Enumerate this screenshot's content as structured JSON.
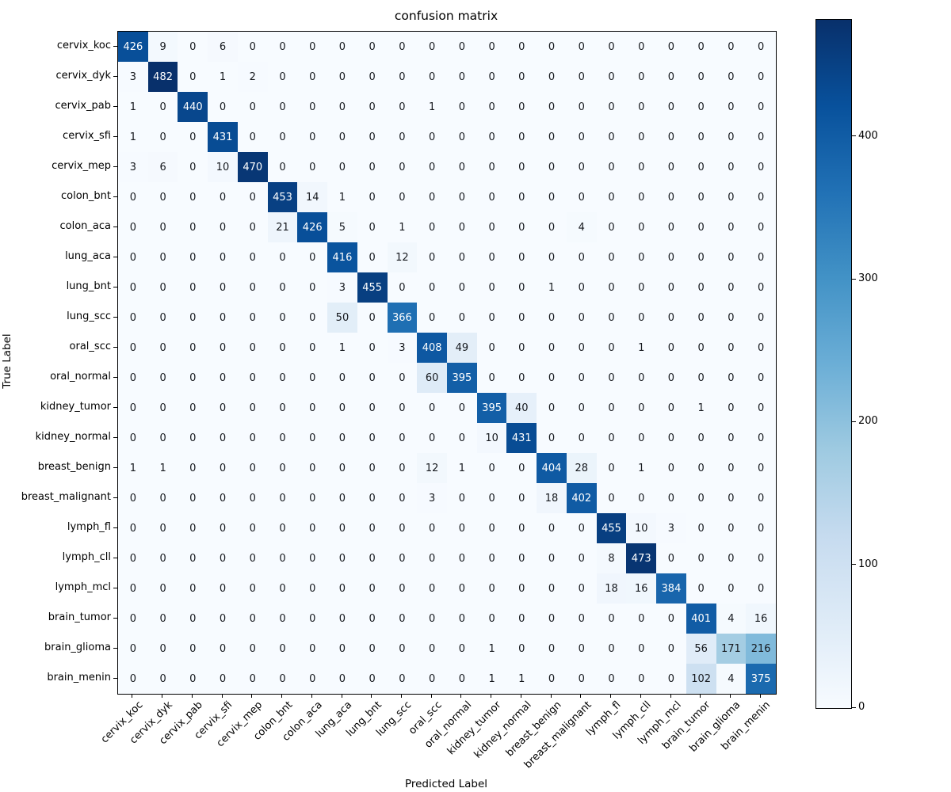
{
  "chart_data": {
    "type": "heatmap",
    "title": "confusion matrix",
    "xlabel": "Predicted Label",
    "ylabel": "True Label",
    "colormap": "Blues",
    "colormap_stops": [
      "#f7fbff",
      "#deebf7",
      "#c6dbef",
      "#9ecae1",
      "#6baed6",
      "#4292c6",
      "#2171b5",
      "#08519c",
      "#08306b"
    ],
    "vmin": 0,
    "vmax": 482,
    "grid": false,
    "legend_position": "right-colorbar",
    "colorbar_ticks": [
      0,
      100,
      200,
      300,
      400
    ],
    "cell_text_colors": {
      "on_dark_cell": "#ffffff",
      "on_light_cell": "#15181d"
    },
    "labels": [
      "cervix_koc",
      "cervix_dyk",
      "cervix_pab",
      "cervix_sfi",
      "cervix_mep",
      "colon_bnt",
      "colon_aca",
      "lung_aca",
      "lung_bnt",
      "lung_scc",
      "oral_scc",
      "oral_normal",
      "kidney_tumor",
      "kidney_normal",
      "breast_benign",
      "breast_malignant",
      "lymph_fl",
      "lymph_cll",
      "lymph_mcl",
      "brain_tumor",
      "brain_glioma",
      "brain_menin"
    ],
    "matrix": [
      [
        426,
        9,
        0,
        6,
        0,
        0,
        0,
        0,
        0,
        0,
        0,
        0,
        0,
        0,
        0,
        0,
        0,
        0,
        0,
        0,
        0,
        0
      ],
      [
        3,
        482,
        0,
        1,
        2,
        0,
        0,
        0,
        0,
        0,
        0,
        0,
        0,
        0,
        0,
        0,
        0,
        0,
        0,
        0,
        0,
        0
      ],
      [
        1,
        0,
        440,
        0,
        0,
        0,
        0,
        0,
        0,
        0,
        1,
        0,
        0,
        0,
        0,
        0,
        0,
        0,
        0,
        0,
        0,
        0
      ],
      [
        1,
        0,
        0,
        431,
        0,
        0,
        0,
        0,
        0,
        0,
        0,
        0,
        0,
        0,
        0,
        0,
        0,
        0,
        0,
        0,
        0,
        0
      ],
      [
        3,
        6,
        0,
        10,
        470,
        0,
        0,
        0,
        0,
        0,
        0,
        0,
        0,
        0,
        0,
        0,
        0,
        0,
        0,
        0,
        0,
        0
      ],
      [
        0,
        0,
        0,
        0,
        0,
        453,
        14,
        1,
        0,
        0,
        0,
        0,
        0,
        0,
        0,
        0,
        0,
        0,
        0,
        0,
        0,
        0
      ],
      [
        0,
        0,
        0,
        0,
        0,
        21,
        426,
        5,
        0,
        1,
        0,
        0,
        0,
        0,
        0,
        4,
        0,
        0,
        0,
        0,
        0,
        0
      ],
      [
        0,
        0,
        0,
        0,
        0,
        0,
        0,
        416,
        0,
        12,
        0,
        0,
        0,
        0,
        0,
        0,
        0,
        0,
        0,
        0,
        0,
        0
      ],
      [
        0,
        0,
        0,
        0,
        0,
        0,
        0,
        3,
        455,
        0,
        0,
        0,
        0,
        0,
        1,
        0,
        0,
        0,
        0,
        0,
        0,
        0
      ],
      [
        0,
        0,
        0,
        0,
        0,
        0,
        0,
        50,
        0,
        366,
        0,
        0,
        0,
        0,
        0,
        0,
        0,
        0,
        0,
        0,
        0,
        0
      ],
      [
        0,
        0,
        0,
        0,
        0,
        0,
        0,
        1,
        0,
        3,
        408,
        49,
        0,
        0,
        0,
        0,
        0,
        1,
        0,
        0,
        0,
        0
      ],
      [
        0,
        0,
        0,
        0,
        0,
        0,
        0,
        0,
        0,
        0,
        60,
        395,
        0,
        0,
        0,
        0,
        0,
        0,
        0,
        0,
        0,
        0
      ],
      [
        0,
        0,
        0,
        0,
        0,
        0,
        0,
        0,
        0,
        0,
        0,
        0,
        395,
        40,
        0,
        0,
        0,
        0,
        0,
        1,
        0,
        0
      ],
      [
        0,
        0,
        0,
        0,
        0,
        0,
        0,
        0,
        0,
        0,
        0,
        0,
        10,
        431,
        0,
        0,
        0,
        0,
        0,
        0,
        0,
        0
      ],
      [
        1,
        1,
        0,
        0,
        0,
        0,
        0,
        0,
        0,
        0,
        12,
        1,
        0,
        0,
        404,
        28,
        0,
        1,
        0,
        0,
        0,
        0
      ],
      [
        0,
        0,
        0,
        0,
        0,
        0,
        0,
        0,
        0,
        0,
        3,
        0,
        0,
        0,
        18,
        402,
        0,
        0,
        0,
        0,
        0,
        0
      ],
      [
        0,
        0,
        0,
        0,
        0,
        0,
        0,
        0,
        0,
        0,
        0,
        0,
        0,
        0,
        0,
        0,
        455,
        10,
        3,
        0,
        0,
        0
      ],
      [
        0,
        0,
        0,
        0,
        0,
        0,
        0,
        0,
        0,
        0,
        0,
        0,
        0,
        0,
        0,
        0,
        8,
        473,
        0,
        0,
        0,
        0
      ],
      [
        0,
        0,
        0,
        0,
        0,
        0,
        0,
        0,
        0,
        0,
        0,
        0,
        0,
        0,
        0,
        0,
        18,
        16,
        384,
        0,
        0,
        0
      ],
      [
        0,
        0,
        0,
        0,
        0,
        0,
        0,
        0,
        0,
        0,
        0,
        0,
        0,
        0,
        0,
        0,
        0,
        0,
        0,
        401,
        4,
        16
      ],
      [
        0,
        0,
        0,
        0,
        0,
        0,
        0,
        0,
        0,
        0,
        0,
        0,
        1,
        0,
        0,
        0,
        0,
        0,
        0,
        56,
        171,
        216
      ],
      [
        0,
        0,
        0,
        0,
        0,
        0,
        0,
        0,
        0,
        0,
        0,
        0,
        1,
        1,
        0,
        0,
        0,
        0,
        0,
        102,
        4,
        375
      ]
    ]
  }
}
